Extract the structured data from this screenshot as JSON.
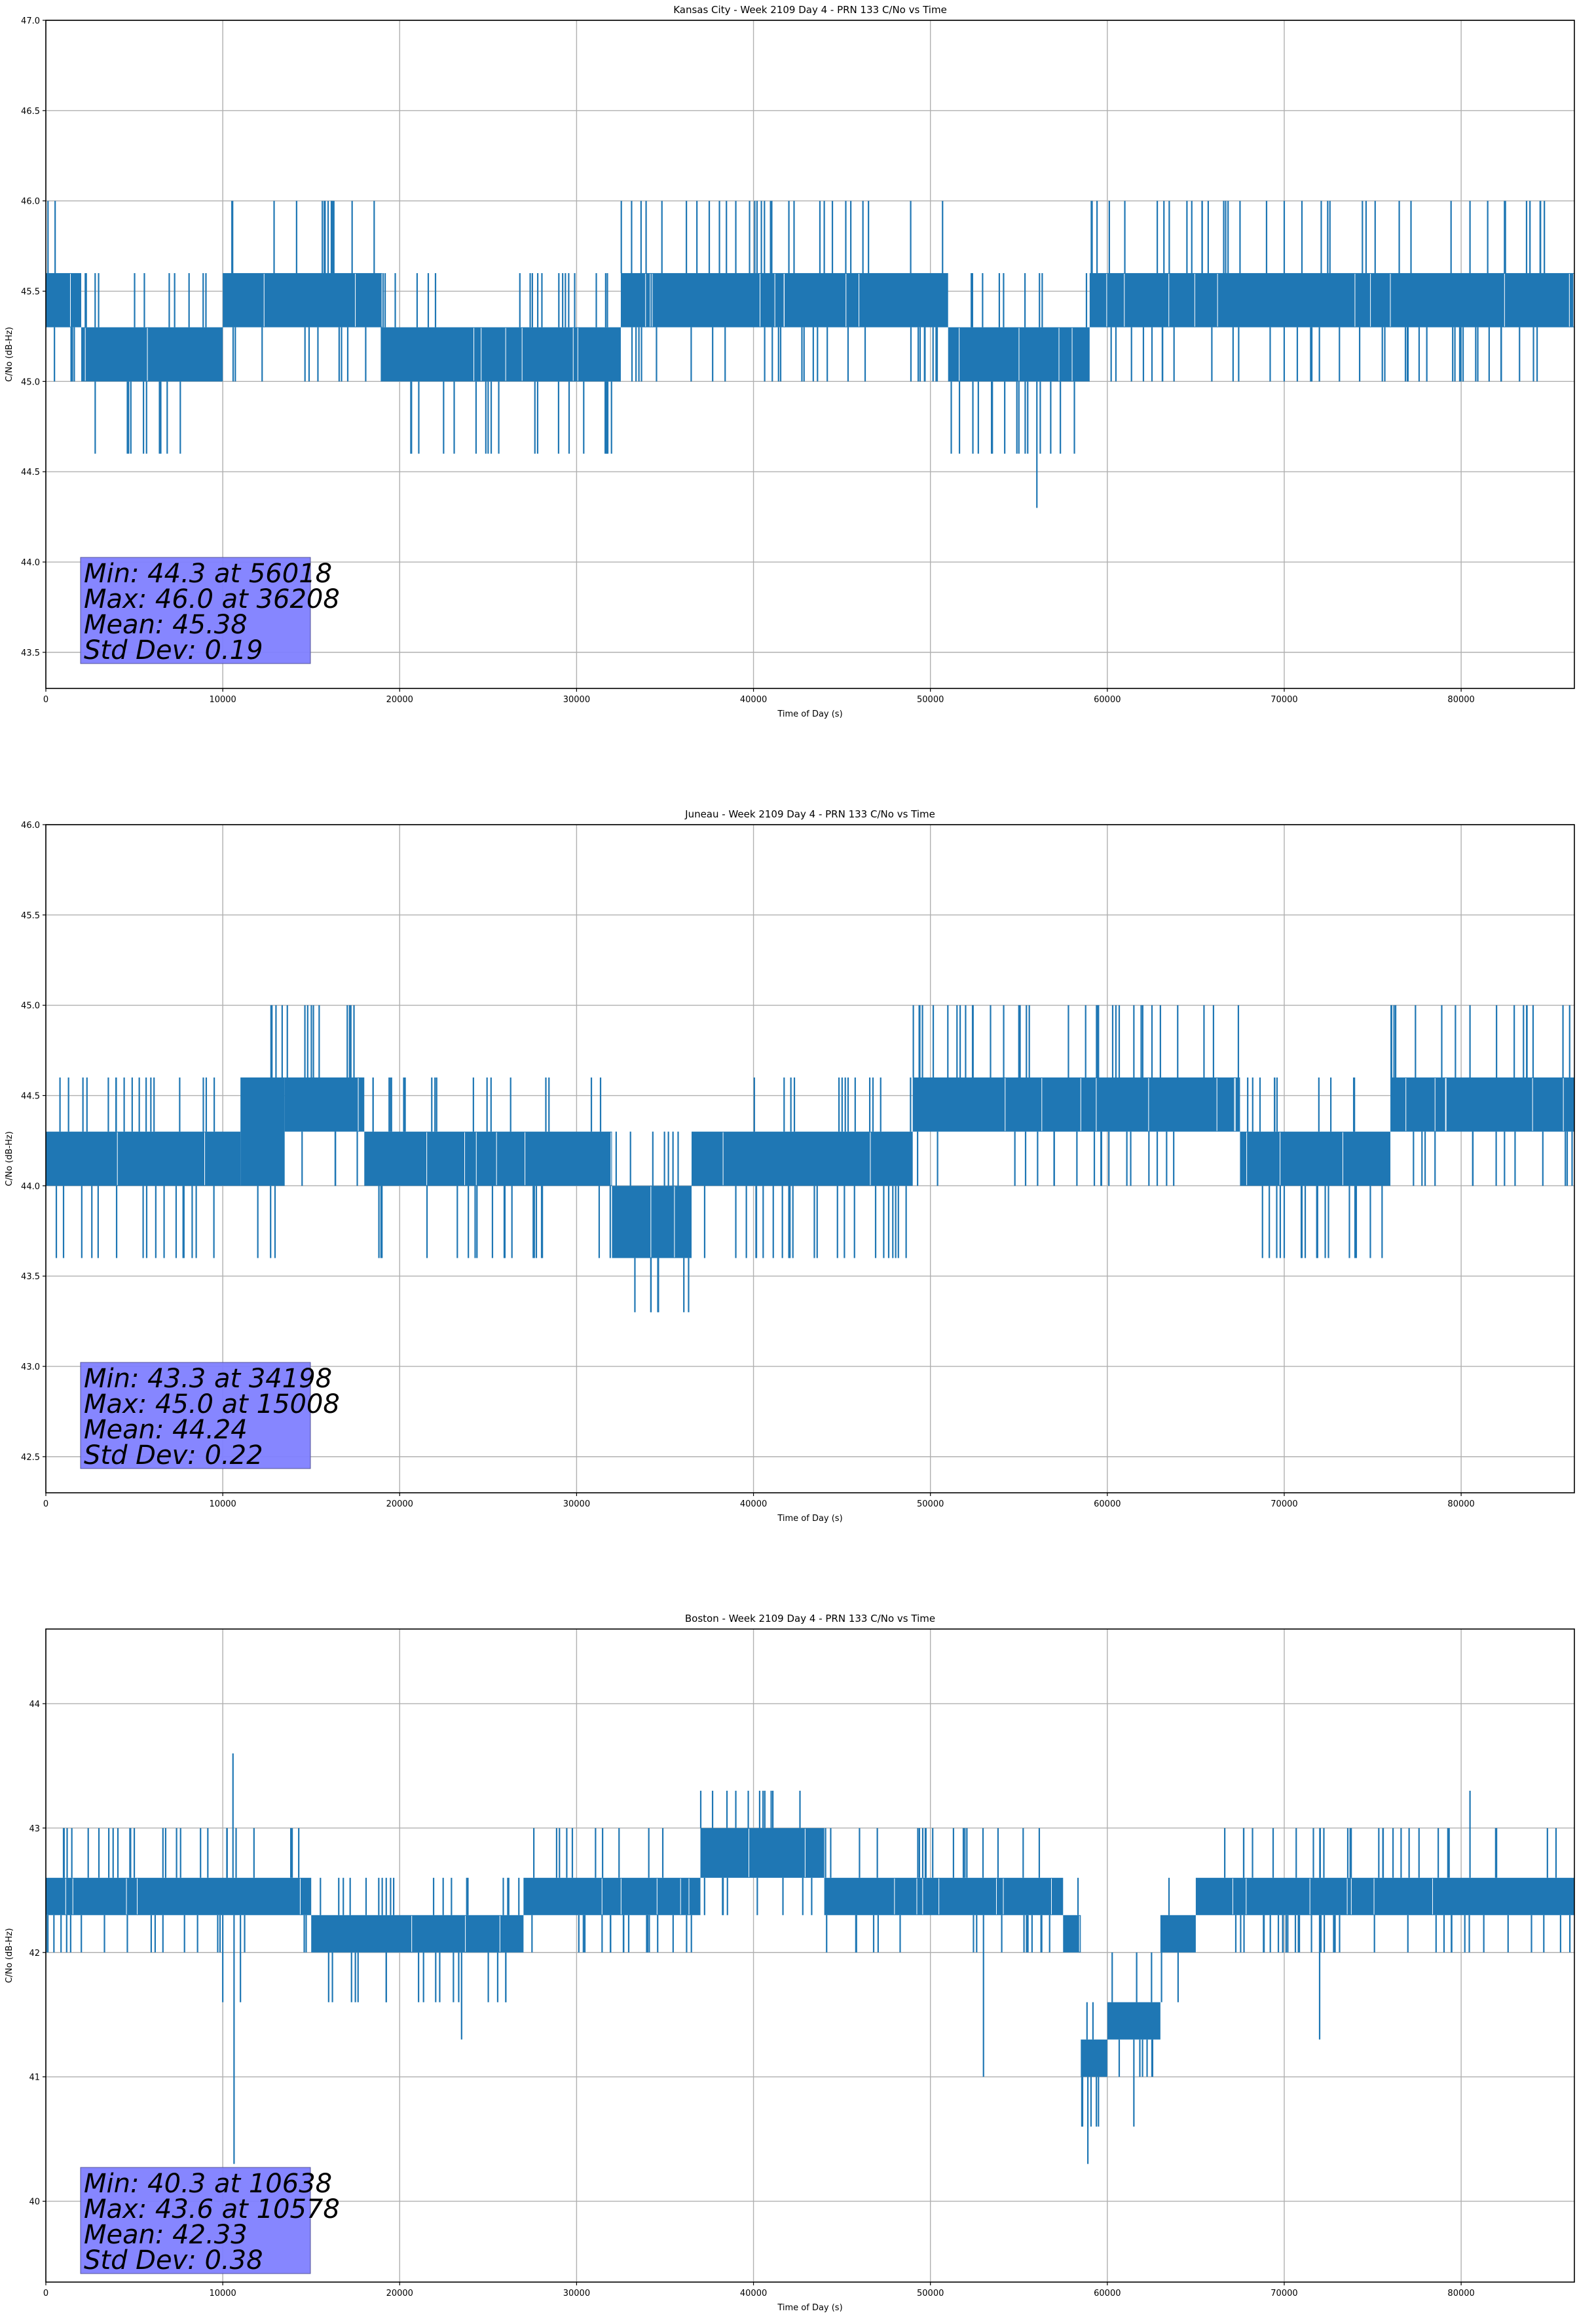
{
  "chart_data": [
    {
      "type": "line",
      "title": "Kansas City - Week 2109 Day 4 - PRN 133 C/No vs Time",
      "xlabel": "Time of Day (s)",
      "ylabel": "C/No (dB-Hz)",
      "xlim": [
        0,
        86400
      ],
      "ylim": [
        43.3,
        47.0
      ],
      "xticks": [
        0,
        10000,
        20000,
        30000,
        40000,
        50000,
        60000,
        70000,
        80000
      ],
      "xtick_labels": [
        "0",
        "10000",
        "20000",
        "30000",
        "40000",
        "50000",
        "60000",
        "70000",
        "80000"
      ],
      "yticks": [
        43.5,
        44.0,
        44.5,
        45.0,
        45.5,
        46.0,
        46.5,
        47.0
      ],
      "ytick_labels": [
        "43.5",
        "44.0",
        "44.5",
        "45.0",
        "45.5",
        "46.0",
        "46.5",
        "47.0"
      ],
      "grid": true,
      "color": "#1f77b4",
      "quantization_levels": [
        44.3,
        44.6,
        45.0,
        45.3,
        45.6,
        46.0
      ],
      "segments": [
        {
          "x_start": 0,
          "x_end": 2000,
          "low": 45.3,
          "high": 45.6
        },
        {
          "x_start": 2000,
          "x_end": 10000,
          "low": 45.0,
          "high": 45.3
        },
        {
          "x_start": 10000,
          "x_end": 19000,
          "low": 45.3,
          "high": 45.6
        },
        {
          "x_start": 19000,
          "x_end": 32500,
          "low": 45.0,
          "high": 45.3
        },
        {
          "x_start": 32500,
          "x_end": 51000,
          "low": 45.3,
          "high": 45.6
        },
        {
          "x_start": 51000,
          "x_end": 59000,
          "low": 45.0,
          "high": 45.3
        },
        {
          "x_start": 59000,
          "x_end": 86400,
          "low": 45.3,
          "high": 45.6
        }
      ],
      "spikes": [
        {
          "x": 25000,
          "y": 44.6
        },
        {
          "x": 25600,
          "y": 44.6
        },
        {
          "x": 36208,
          "y": 46.0
        },
        {
          "x": 37500,
          "y": 46.0
        },
        {
          "x": 39000,
          "y": 46.0
        },
        {
          "x": 42000,
          "y": 46.0
        },
        {
          "x": 44000,
          "y": 46.0
        },
        {
          "x": 45500,
          "y": 46.0
        },
        {
          "x": 46500,
          "y": 46.0
        },
        {
          "x": 53500,
          "y": 44.6
        },
        {
          "x": 54200,
          "y": 44.6
        },
        {
          "x": 55000,
          "y": 44.6
        },
        {
          "x": 55500,
          "y": 44.6
        },
        {
          "x": 56018,
          "y": 44.3
        },
        {
          "x": 56800,
          "y": 44.6
        },
        {
          "x": 63500,
          "y": 46.0
        },
        {
          "x": 64500,
          "y": 46.0
        },
        {
          "x": 67500,
          "y": 46.0
        },
        {
          "x": 69000,
          "y": 46.0
        },
        {
          "x": 70000,
          "y": 46.0
        },
        {
          "x": 71000,
          "y": 46.0
        },
        {
          "x": 76500,
          "y": 46.0
        },
        {
          "x": 80500,
          "y": 46.0
        },
        {
          "x": 81500,
          "y": 46.0
        },
        {
          "x": 82500,
          "y": 46.0
        }
      ],
      "stats": {
        "min_label": "Min: 44.3 at 56018",
        "max_label": "Max: 46.0 at 36208",
        "mean_label": "Mean: 45.38",
        "std_label": "Std Dev: 0.19"
      }
    },
    {
      "type": "line",
      "title": "Juneau - Week 2109 Day 4 - PRN 133 C/No vs Time",
      "xlabel": "Time of Day (s)",
      "ylabel": "C/No (dB-Hz)",
      "xlim": [
        0,
        86400
      ],
      "ylim": [
        42.3,
        46.0
      ],
      "xticks": [
        0,
        10000,
        20000,
        30000,
        40000,
        50000,
        60000,
        70000,
        80000
      ],
      "xtick_labels": [
        "0",
        "10000",
        "20000",
        "30000",
        "40000",
        "50000",
        "60000",
        "70000",
        "80000"
      ],
      "yticks": [
        42.5,
        43.0,
        43.5,
        44.0,
        44.5,
        45.0,
        45.5,
        46.0
      ],
      "ytick_labels": [
        "42.5",
        "43.0",
        "43.5",
        "44.0",
        "44.5",
        "45.0",
        "45.5",
        "46.0"
      ],
      "grid": true,
      "color": "#1f77b4",
      "quantization_levels": [
        43.3,
        43.6,
        44.0,
        44.3,
        44.6,
        45.0
      ],
      "segments": [
        {
          "x_start": 0,
          "x_end": 11000,
          "low": 44.0,
          "high": 44.3
        },
        {
          "x_start": 11000,
          "x_end": 13500,
          "low": 44.0,
          "high": 44.6
        },
        {
          "x_start": 13500,
          "x_end": 18000,
          "low": 44.3,
          "high": 44.6
        },
        {
          "x_start": 18000,
          "x_end": 32000,
          "low": 44.0,
          "high": 44.3
        },
        {
          "x_start": 32000,
          "x_end": 36500,
          "low": 43.6,
          "high": 44.0
        },
        {
          "x_start": 36500,
          "x_end": 49000,
          "low": 44.0,
          "high": 44.3
        },
        {
          "x_start": 49000,
          "x_end": 67500,
          "low": 44.3,
          "high": 44.6
        },
        {
          "x_start": 67500,
          "x_end": 76000,
          "low": 44.0,
          "high": 44.3
        },
        {
          "x_start": 76000,
          "x_end": 86400,
          "low": 44.3,
          "high": 44.6
        }
      ],
      "spikes": [
        {
          "x": 800,
          "y": 44.6
        },
        {
          "x": 1000,
          "y": 43.6
        },
        {
          "x": 2600,
          "y": 43.6
        },
        {
          "x": 4000,
          "y": 43.6
        },
        {
          "x": 5500,
          "y": 43.6
        },
        {
          "x": 8500,
          "y": 43.6
        },
        {
          "x": 9500,
          "y": 43.6
        },
        {
          "x": 15008,
          "y": 45.0
        },
        {
          "x": 14800,
          "y": 45.0
        },
        {
          "x": 34198,
          "y": 43.3
        },
        {
          "x": 39000,
          "y": 43.6
        },
        {
          "x": 42000,
          "y": 43.6
        },
        {
          "x": 55000,
          "y": 45.0
        },
        {
          "x": 59500,
          "y": 45.0
        },
        {
          "x": 61500,
          "y": 45.0
        },
        {
          "x": 62000,
          "y": 45.0
        },
        {
          "x": 63000,
          "y": 45.0
        },
        {
          "x": 66000,
          "y": 45.0
        },
        {
          "x": 70000,
          "y": 43.6
        },
        {
          "x": 71000,
          "y": 43.6
        },
        {
          "x": 72500,
          "y": 43.6
        },
        {
          "x": 74000,
          "y": 43.6
        },
        {
          "x": 80500,
          "y": 45.0
        },
        {
          "x": 82000,
          "y": 45.0
        },
        {
          "x": 83000,
          "y": 45.0
        }
      ],
      "stats": {
        "min_label": "Min: 43.3 at 34198",
        "max_label": "Max: 45.0 at 15008",
        "mean_label": "Mean: 44.24",
        "std_label": "Std Dev: 0.22"
      }
    },
    {
      "type": "line",
      "title": "Boston - Week 2109 Day 4 - PRN 133 C/No vs Time",
      "xlabel": "Time of Day (s)",
      "ylabel": "C/No (dB-Hz)",
      "xlim": [
        0,
        86400
      ],
      "ylim": [
        39.35,
        44.6
      ],
      "xticks": [
        0,
        10000,
        20000,
        30000,
        40000,
        50000,
        60000,
        70000,
        80000
      ],
      "xtick_labels": [
        "0",
        "10000",
        "20000",
        "30000",
        "40000",
        "50000",
        "60000",
        "70000",
        "80000"
      ],
      "yticks": [
        40,
        41,
        42,
        43,
        44
      ],
      "ytick_labels": [
        "40",
        "41",
        "42",
        "43",
        "44"
      ],
      "grid": true,
      "color": "#1f77b4",
      "quantization_levels": [
        40.3,
        40.6,
        41.0,
        41.3,
        41.6,
        42.0,
        42.3,
        42.6,
        43.0,
        43.3,
        43.6
      ],
      "segments": [
        {
          "x_start": 0,
          "x_end": 15000,
          "low": 42.3,
          "high": 42.6
        },
        {
          "x_start": 15000,
          "x_end": 27000,
          "low": 42.0,
          "high": 42.3
        },
        {
          "x_start": 27000,
          "x_end": 37000,
          "low": 42.3,
          "high": 42.6
        },
        {
          "x_start": 37000,
          "x_end": 44000,
          "low": 42.6,
          "high": 43.0
        },
        {
          "x_start": 44000,
          "x_end": 57500,
          "low": 42.3,
          "high": 42.6
        },
        {
          "x_start": 57500,
          "x_end": 58500,
          "low": 42.0,
          "high": 42.3
        },
        {
          "x_start": 58500,
          "x_end": 60000,
          "low": 41.0,
          "high": 41.3
        },
        {
          "x_start": 60000,
          "x_end": 63000,
          "low": 41.3,
          "high": 41.6
        },
        {
          "x_start": 63000,
          "x_end": 65000,
          "low": 42.0,
          "high": 42.3
        },
        {
          "x_start": 65000,
          "x_end": 86400,
          "low": 42.3,
          "high": 42.6
        }
      ],
      "spikes": [
        {
          "x": 1000,
          "y": 43.0
        },
        {
          "x": 3000,
          "y": 43.0
        },
        {
          "x": 5000,
          "y": 43.0
        },
        {
          "x": 10000,
          "y": 41.6
        },
        {
          "x": 10578,
          "y": 43.6
        },
        {
          "x": 10638,
          "y": 40.3
        },
        {
          "x": 11000,
          "y": 41.6
        },
        {
          "x": 23500,
          "y": 41.3
        },
        {
          "x": 26000,
          "y": 41.6
        },
        {
          "x": 38500,
          "y": 43.3
        },
        {
          "x": 39000,
          "y": 43.3
        },
        {
          "x": 41000,
          "y": 43.3
        },
        {
          "x": 53000,
          "y": 41.0
        },
        {
          "x": 58900,
          "y": 40.3
        },
        {
          "x": 58600,
          "y": 40.6
        },
        {
          "x": 59500,
          "y": 40.6
        },
        {
          "x": 61500,
          "y": 40.6
        },
        {
          "x": 64000,
          "y": 41.6
        },
        {
          "x": 72000,
          "y": 41.3
        },
        {
          "x": 80500,
          "y": 43.3
        },
        {
          "x": 82000,
          "y": 43.0
        }
      ],
      "stats": {
        "min_label": "Min: 40.3 at 10638",
        "max_label": "Max: 43.6 at 10578",
        "mean_label": "Mean: 42.33",
        "std_label": "Std Dev: 0.38"
      }
    }
  ],
  "style": {
    "line_color": "#1f77b4",
    "stats_box_color": "#8080ff",
    "grid_color": "#b0b0b0"
  }
}
